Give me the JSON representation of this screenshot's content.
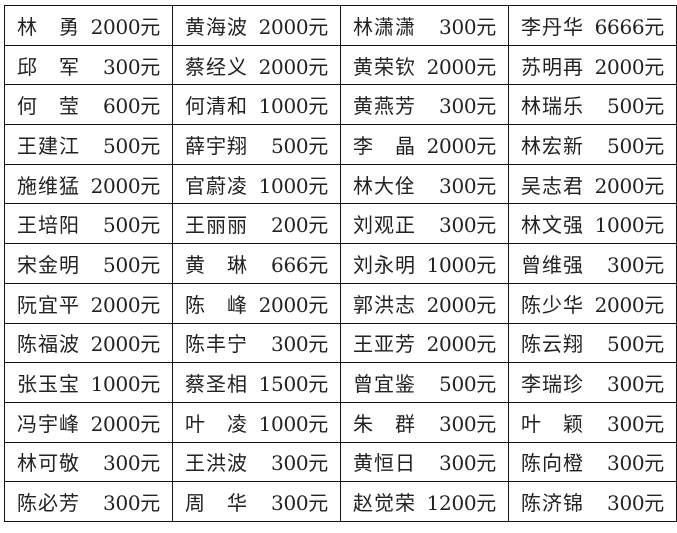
{
  "table": {
    "rows": [
      [
        [
          "林 勇",
          "2000元"
        ],
        [
          "黄海波",
          "2000元"
        ],
        [
          "林潇潇",
          "300元"
        ],
        [
          "李丹华",
          "6666元"
        ]
      ],
      [
        [
          "邱 军",
          "300元"
        ],
        [
          "蔡经义",
          "2000元"
        ],
        [
          "黄荣钦",
          "2000元"
        ],
        [
          "苏明再",
          "2000元"
        ]
      ],
      [
        [
          "何 莹",
          "600元"
        ],
        [
          "何清和",
          "1000元"
        ],
        [
          "黄燕芳",
          "300元"
        ],
        [
          "林瑞乐",
          "500元"
        ]
      ],
      [
        [
          "王建江",
          "500元"
        ],
        [
          "薛宇翔",
          "500元"
        ],
        [
          "李 晶",
          "2000元"
        ],
        [
          "林宏新",
          "500元"
        ]
      ],
      [
        [
          "施维猛",
          "2000元"
        ],
        [
          "官蔚凌",
          "1000元"
        ],
        [
          "林大佺",
          "300元"
        ],
        [
          "吴志君",
          "2000元"
        ]
      ],
      [
        [
          "王培阳",
          "500元"
        ],
        [
          "王丽丽",
          "200元"
        ],
        [
          "刘观正",
          "300元"
        ],
        [
          "林文强",
          "1000元"
        ]
      ],
      [
        [
          "宋金明",
          "500元"
        ],
        [
          "黄 琳",
          "666元"
        ],
        [
          "刘永明",
          "1000元"
        ],
        [
          "曾维强",
          "300元"
        ]
      ],
      [
        [
          "阮宜平",
          "2000元"
        ],
        [
          "陈 峰",
          "2000元"
        ],
        [
          "郭洪志",
          "2000元"
        ],
        [
          "陈少华",
          "2000元"
        ]
      ],
      [
        [
          "陈福波",
          "2000元"
        ],
        [
          "陈丰宁",
          "300元"
        ],
        [
          "王亚芳",
          "2000元"
        ],
        [
          "陈云翔",
          "500元"
        ]
      ],
      [
        [
          "张玉宝",
          "1000元"
        ],
        [
          "蔡圣相",
          "1500元"
        ],
        [
          "曾宜鉴",
          "500元"
        ],
        [
          "李瑞珍",
          "300元"
        ]
      ],
      [
        [
          "冯宇峰",
          "2000元"
        ],
        [
          "叶 凌",
          "1000元"
        ],
        [
          "朱 群",
          "300元"
        ],
        [
          "叶 颖",
          "300元"
        ]
      ],
      [
        [
          "林可敬",
          "300元"
        ],
        [
          "王洪波",
          "300元"
        ],
        [
          "黄恒日",
          "300元"
        ],
        [
          "陈向橙",
          "300元"
        ]
      ],
      [
        [
          "陈必芳",
          "300元"
        ],
        [
          "周 华",
          "300元"
        ],
        [
          "赵觉荣",
          "1200元"
        ],
        [
          "陈济锦",
          "300元"
        ]
      ]
    ]
  }
}
